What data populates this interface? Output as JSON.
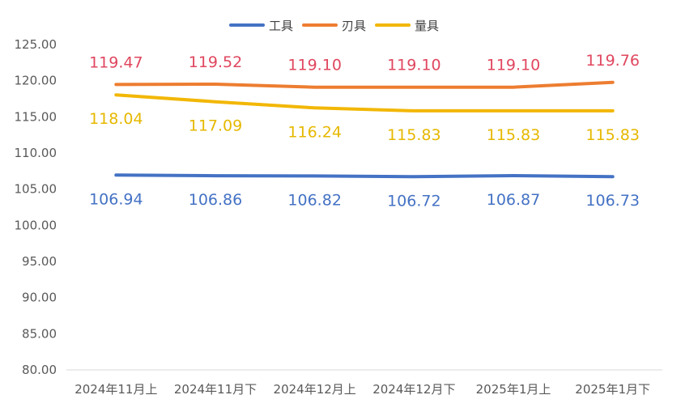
{
  "chart_data": {
    "type": "line",
    "title": "",
    "xlabel": "",
    "ylabel": "",
    "categories": [
      "2024年11月上",
      "2024年11月下",
      "2024年12月上",
      "2024年12月下",
      "2025年1月上",
      "2025年1月下"
    ],
    "ylim": [
      80,
      125
    ],
    "yticks": [
      "125.00",
      "120.00",
      "115.00",
      "110.00",
      "105.00",
      "100.00",
      "95.00",
      "90.00",
      "85.00",
      "80.00"
    ],
    "ytick_values": [
      125,
      120,
      115,
      110,
      105,
      100,
      95,
      90,
      85,
      80
    ],
    "grid": false,
    "legend_position": "top",
    "series": [
      {
        "name": "工具",
        "color": "#4472C4",
        "label_color": "#4472C4",
        "values": [
          106.94,
          106.86,
          106.82,
          106.72,
          106.87,
          106.73
        ],
        "labels": [
          "106.94",
          "106.86",
          "106.82",
          "106.72",
          "106.87",
          "106.73"
        ],
        "label_position": "below"
      },
      {
        "name": "刃具",
        "color": "#ED7D31",
        "label_color": "#E0475F",
        "values": [
          119.47,
          119.52,
          119.1,
          119.1,
          119.1,
          119.76
        ],
        "labels": [
          "119.47",
          "119.52",
          "119.10",
          "119.10",
          "119.10",
          "119.76"
        ],
        "label_position": "above"
      },
      {
        "name": "量具",
        "color": "#F2B705",
        "label_color": "#E6B800",
        "values": [
          118.04,
          117.09,
          116.24,
          115.83,
          115.83,
          115.83
        ],
        "labels": [
          "118.04",
          "117.09",
          "116.24",
          "115.83",
          "115.83",
          "115.83"
        ],
        "label_position": "below"
      }
    ]
  }
}
